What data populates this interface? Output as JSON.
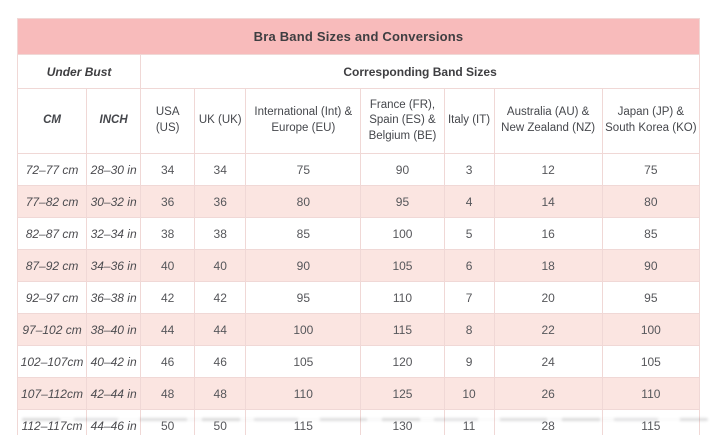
{
  "chart_data": {
    "type": "table",
    "title": "Bra Band Sizes and Conversions",
    "group_headers": [
      {
        "label": "Under Bust",
        "span": 2
      },
      {
        "label": "Corresponding Band Sizes",
        "span": 7
      }
    ],
    "columns": [
      "CM",
      "INCH",
      "USA (US)",
      "UK (UK)",
      "International (Int) & Europe (EU)",
      "France (FR), Spain (ES) & Belgium (BE)",
      "Italy (IT)",
      "Australia (AU) & New Zealand (NZ)",
      "Japan (JP) & South Korea (KO)"
    ],
    "rows": [
      [
        "72–77 cm",
        "28–30 in",
        "34",
        "34",
        "75",
        "90",
        "3",
        "12",
        "75"
      ],
      [
        "77–82 cm",
        "30–32 in",
        "36",
        "36",
        "80",
        "95",
        "4",
        "14",
        "80"
      ],
      [
        "82–87 cm",
        "32–34 in",
        "38",
        "38",
        "85",
        "100",
        "5",
        "16",
        "85"
      ],
      [
        "87–92 cm",
        "34–36 in",
        "40",
        "40",
        "90",
        "105",
        "6",
        "18",
        "90"
      ],
      [
        "92–97 cm",
        "36–38 in",
        "42",
        "42",
        "95",
        "110",
        "7",
        "20",
        "95"
      ],
      [
        "97–102 cm",
        "38–40 in",
        "44",
        "44",
        "100",
        "115",
        "8",
        "22",
        "100"
      ],
      [
        "102–107cm",
        "40–42 in",
        "46",
        "46",
        "105",
        "120",
        "9",
        "24",
        "105"
      ],
      [
        "107–112cm",
        "42–44 in",
        "48",
        "48",
        "110",
        "125",
        "10",
        "26",
        "110"
      ],
      [
        "112–117cm",
        "44–46 in",
        "50",
        "50",
        "115",
        "130",
        "11",
        "28",
        "115"
      ]
    ],
    "layout": {
      "alternating_row_shading": true,
      "shaded_rows": "even (2,4,6,8)"
    }
  },
  "colors": {
    "title_bar": "#f8bbbb",
    "alt_row": "#fbe5e1",
    "border": "#f0d8d6",
    "title_text": "#3e3e41",
    "cell_text": "#56575b"
  }
}
